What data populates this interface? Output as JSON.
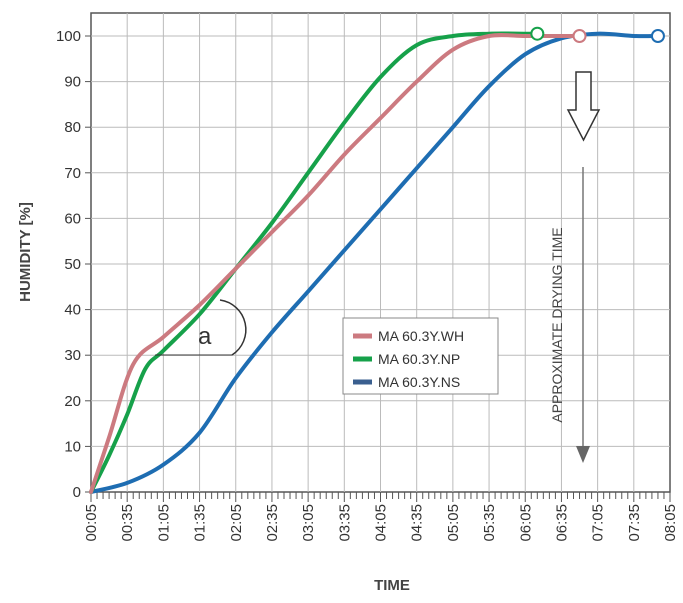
{
  "chart_data": {
    "type": "line",
    "xlabel": "TIME",
    "ylabel": "HUMIDITY [%]",
    "ylim": [
      0,
      100
    ],
    "yticks": [
      0,
      10,
      20,
      30,
      40,
      50,
      60,
      70,
      80,
      90,
      100
    ],
    "xlim": [
      "00:05",
      "08:05"
    ],
    "xticks": [
      "00:05",
      "00:35",
      "01:05",
      "01:35",
      "02:05",
      "02:35",
      "03:05",
      "03:35",
      "04:05",
      "04:35",
      "05:05",
      "05:35",
      "06:05",
      "06:35",
      "07:05",
      "07:35",
      "08:05"
    ],
    "grid": true,
    "legend_position": "center-right",
    "series": [
      {
        "name": "MA 60.3Y.WH",
        "color": "#cc7a80",
        "points": [
          {
            "x": "00:05",
            "y": 0
          },
          {
            "x": "00:20",
            "y": 12
          },
          {
            "x": "00:40",
            "y": 28
          },
          {
            "x": "01:05",
            "y": 34
          },
          {
            "x": "01:35",
            "y": 41
          },
          {
            "x": "02:05",
            "y": 49
          },
          {
            "x": "02:35",
            "y": 57
          },
          {
            "x": "03:05",
            "y": 65
          },
          {
            "x": "03:35",
            "y": 74
          },
          {
            "x": "04:05",
            "y": 82
          },
          {
            "x": "04:35",
            "y": 90
          },
          {
            "x": "05:05",
            "y": 97
          },
          {
            "x": "05:35",
            "y": 100
          },
          {
            "x": "06:05",
            "y": 100
          },
          {
            "x": "06:35",
            "y": 100
          },
          {
            "x": "06:50",
            "y": 100
          }
        ],
        "end_marker": {
          "x": "06:50",
          "y": 100
        }
      },
      {
        "name": "MA 60.3Y.NP",
        "color": "#16a14a",
        "points": [
          {
            "x": "00:05",
            "y": 0
          },
          {
            "x": "00:20",
            "y": 8
          },
          {
            "x": "00:35",
            "y": 17
          },
          {
            "x": "00:50",
            "y": 27
          },
          {
            "x": "01:05",
            "y": 31
          },
          {
            "x": "01:35",
            "y": 39
          },
          {
            "x": "02:05",
            "y": 49
          },
          {
            "x": "02:35",
            "y": 59
          },
          {
            "x": "03:05",
            "y": 70
          },
          {
            "x": "03:35",
            "y": 81
          },
          {
            "x": "04:05",
            "y": 91
          },
          {
            "x": "04:35",
            "y": 98
          },
          {
            "x": "05:05",
            "y": 100
          },
          {
            "x": "05:35",
            "y": 100.5
          },
          {
            "x": "06:05",
            "y": 100.5
          },
          {
            "x": "06:15",
            "y": 100.5
          }
        ],
        "end_marker": {
          "x": "06:15",
          "y": 100.5
        }
      },
      {
        "name": "MA 60.3Y.NS",
        "color": "#1e6db2",
        "points": [
          {
            "x": "00:05",
            "y": 0
          },
          {
            "x": "00:35",
            "y": 2
          },
          {
            "x": "01:05",
            "y": 6
          },
          {
            "x": "01:35",
            "y": 13
          },
          {
            "x": "02:05",
            "y": 25
          },
          {
            "x": "02:35",
            "y": 35
          },
          {
            "x": "03:05",
            "y": 44
          },
          {
            "x": "03:35",
            "y": 53
          },
          {
            "x": "04:05",
            "y": 62
          },
          {
            "x": "04:35",
            "y": 71
          },
          {
            "x": "05:05",
            "y": 80
          },
          {
            "x": "05:35",
            "y": 89
          },
          {
            "x": "06:05",
            "y": 96
          },
          {
            "x": "06:35",
            "y": 99.5
          },
          {
            "x": "07:05",
            "y": 100.5
          },
          {
            "x": "07:35",
            "y": 100
          },
          {
            "x": "07:55",
            "y": 100
          }
        ],
        "end_marker": {
          "x": "07:55",
          "y": 100
        }
      }
    ],
    "annotations": [
      {
        "text": "a",
        "kind": "angle"
      },
      {
        "text": "APPROXIMATE DRYING TIME",
        "kind": "vertical-arrow"
      }
    ]
  }
}
